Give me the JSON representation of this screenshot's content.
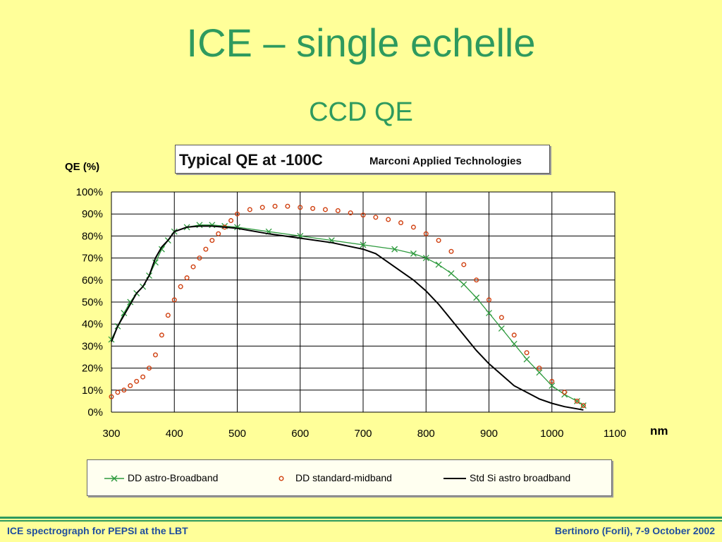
{
  "slide": {
    "title": "ICE – single echelle",
    "subtitle": "CCD QE"
  },
  "footer": {
    "left": "ICE spectrograph for PEPSI at the LBT",
    "right": "Bertinoro (Forli), 7-9 October 2002"
  },
  "colors": {
    "title": "#2e9a5e",
    "footer_text": "#1f4e9e",
    "background": "#ffff99",
    "series_broadband": "#2e9a3e",
    "series_midband": "#d04010",
    "series_std": "#000000"
  },
  "chart_data": {
    "type": "line",
    "title": "Typical QE at -100C",
    "subtitle": "Marconi Applied Technologies",
    "ylabel": "QE (%)",
    "xlabel": "nm",
    "xlim": [
      300,
      1100
    ],
    "ylim": [
      0,
      100
    ],
    "x_ticks": [
      "300",
      "400",
      "500",
      "600",
      "700",
      "800",
      "900",
      "1000",
      "1100"
    ],
    "y_ticks": [
      "0%",
      "10%",
      "20%",
      "30%",
      "40%",
      "50%",
      "60%",
      "70%",
      "80%",
      "90%",
      "100%"
    ],
    "grid": true,
    "legend_position": "bottom",
    "series": [
      {
        "name": "DD astro-Broadband",
        "marker": "x",
        "x": [
          300,
          310,
          320,
          330,
          340,
          350,
          360,
          370,
          380,
          390,
          400,
          420,
          440,
          460,
          480,
          500,
          550,
          600,
          650,
          700,
          750,
          780,
          800,
          820,
          840,
          860,
          880,
          900,
          920,
          940,
          960,
          980,
          1000,
          1020,
          1040,
          1050
        ],
        "y": [
          33,
          39,
          45,
          50,
          54,
          57,
          62,
          68,
          74,
          78,
          82,
          84,
          85,
          85,
          84.5,
          84,
          82,
          80,
          78,
          76,
          74,
          72,
          70,
          67,
          63,
          58,
          52,
          45,
          38,
          31,
          24,
          18,
          12,
          8,
          5,
          3
        ]
      },
      {
        "name": "DD standard-midband",
        "marker": "o",
        "x": [
          300,
          310,
          320,
          330,
          340,
          350,
          360,
          370,
          380,
          390,
          400,
          410,
          420,
          430,
          440,
          450,
          460,
          470,
          480,
          490,
          500,
          520,
          540,
          560,
          580,
          600,
          620,
          640,
          660,
          680,
          700,
          720,
          740,
          760,
          780,
          800,
          820,
          840,
          860,
          880,
          900,
          920,
          940,
          960,
          980,
          1000,
          1020,
          1040,
          1050
        ],
        "y": [
          7,
          9,
          10,
          12,
          14,
          16,
          20,
          26,
          35,
          44,
          51,
          57,
          61,
          66,
          70,
          74,
          78,
          81,
          84,
          87,
          90,
          92,
          93,
          93.5,
          93.5,
          93,
          92.5,
          92,
          91.5,
          90.5,
          89.5,
          88.5,
          87.5,
          86,
          84,
          81,
          78,
          73,
          67,
          60,
          51,
          43,
          35,
          27,
          20,
          14,
          9,
          5,
          3
        ]
      },
      {
        "name": "Std Si astro broadband",
        "marker": "line",
        "x": [
          300,
          310,
          320,
          330,
          340,
          350,
          360,
          370,
          380,
          390,
          400,
          420,
          440,
          460,
          480,
          500,
          550,
          600,
          650,
          700,
          720,
          740,
          760,
          780,
          800,
          820,
          840,
          860,
          880,
          900,
          920,
          940,
          960,
          980,
          1000,
          1020,
          1040,
          1050
        ],
        "y": [
          32,
          39,
          44,
          49,
          54,
          57,
          62,
          70,
          75,
          78,
          82,
          84,
          84.5,
          84.5,
          84,
          83.5,
          81,
          79,
          77,
          74,
          72,
          68,
          64,
          60,
          55,
          49,
          42,
          35,
          28,
          22,
          17,
          12,
          9,
          6,
          4,
          2.5,
          1.5,
          1
        ]
      }
    ]
  }
}
